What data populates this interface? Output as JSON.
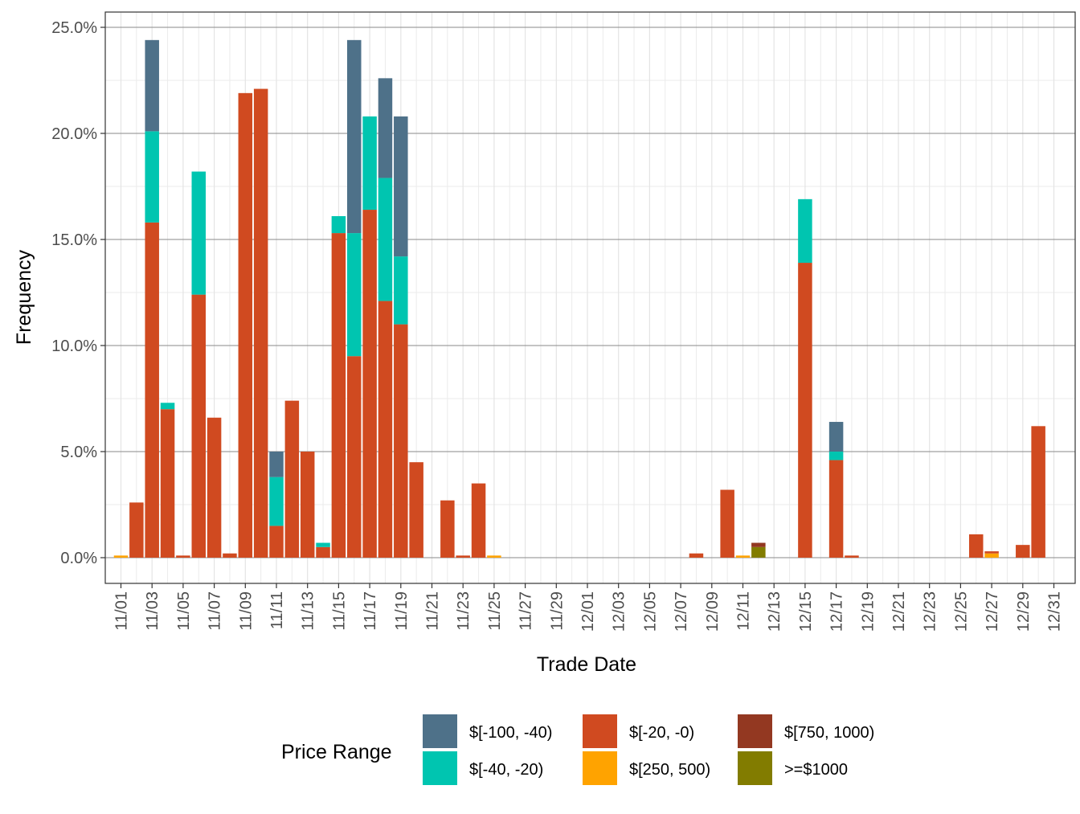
{
  "chart_data": {
    "type": "bar",
    "stacked": true,
    "xlabel": "Trade Date",
    "ylabel": "Frequency",
    "ylim": [
      -0.012,
      0.257
    ],
    "y_ticks": [
      "0.0%",
      "5.0%",
      "10.0%",
      "15.0%",
      "20.0%",
      "25.0%"
    ],
    "y_tick_values": [
      0,
      0.05,
      0.1,
      0.15,
      0.2,
      0.25
    ],
    "x_ticks": [
      "11/01",
      "11/03",
      "11/05",
      "11/07",
      "11/09",
      "11/11",
      "11/13",
      "11/15",
      "11/17",
      "11/19",
      "11/21",
      "11/23",
      "11/25",
      "11/27",
      "11/29",
      "12/01",
      "12/03",
      "12/05",
      "12/07",
      "12/09",
      "12/11",
      "12/13",
      "12/15",
      "12/17",
      "12/19",
      "12/21",
      "12/23",
      "12/25",
      "12/27",
      "12/29",
      "12/31"
    ],
    "grid": true,
    "legend_position": "bottom",
    "legend_title": "Price Range",
    "series": [
      {
        "name": "$[-100, -40)",
        "color": "#4e7189",
        "values": {
          "11/03": 0.043,
          "11/11": 0.012,
          "11/16": 0.091,
          "11/18": 0.047,
          "11/19": 0.066,
          "12/17": 0.014
        }
      },
      {
        "name": "$[-40, -20)",
        "color": "#00c5b0",
        "values": {
          "11/03": 0.043,
          "11/04": 0.003,
          "11/06": 0.058,
          "11/11": 0.023,
          "11/14": 0.002,
          "11/15": 0.008,
          "11/16": 0.058,
          "11/17": 0.044,
          "11/18": 0.058,
          "11/19": 0.032,
          "12/15": 0.03,
          "12/17": 0.004
        }
      },
      {
        "name": "$[-20, -0)",
        "color": "#d04a20",
        "values": {
          "11/02": 0.026,
          "11/03": 0.158,
          "11/04": 0.07,
          "11/05": 0.001,
          "11/06": 0.124,
          "11/07": 0.066,
          "11/08": 0.002,
          "11/09": 0.219,
          "11/10": 0.221,
          "11/11": 0.015,
          "11/12": 0.074,
          "11/13": 0.05,
          "11/14": 0.005,
          "11/15": 0.153,
          "11/16": 0.095,
          "11/17": 0.164,
          "11/18": 0.121,
          "11/19": 0.11,
          "11/20": 0.045,
          "11/22": 0.027,
          "11/23": 0.001,
          "11/24": 0.035,
          "12/08": 0.002,
          "12/10": 0.032,
          "12/15": 0.139,
          "12/17": 0.046,
          "12/18": 0.001,
          "12/26": 0.011,
          "12/27": 0.001,
          "12/29": 0.006,
          "12/30": 0.062
        }
      },
      {
        "name": "$[250, 500)",
        "color": "#ffa300",
        "values": {
          "11/01": 0.001,
          "11/25": 0.001,
          "12/11": 0.001,
          "12/27": 0.002
        }
      },
      {
        "name": "$[750, 1000)",
        "color": "#933821",
        "values": {
          "12/12": 0.002
        }
      },
      {
        "name": ">=$1000",
        "color": "#827c00",
        "values": {
          "12/12": 0.005
        }
      }
    ]
  }
}
